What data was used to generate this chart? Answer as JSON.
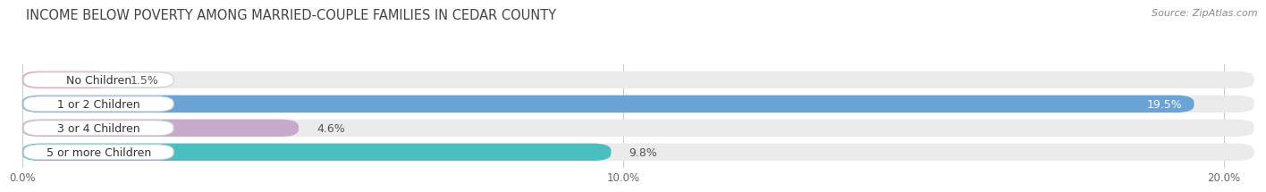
{
  "title": "INCOME BELOW POVERTY AMONG MARRIED-COUPLE FAMILIES IN CEDAR COUNTY",
  "source": "Source: ZipAtlas.com",
  "categories": [
    "No Children",
    "1 or 2 Children",
    "3 or 4 Children",
    "5 or more Children"
  ],
  "values": [
    1.5,
    19.5,
    4.6,
    9.8
  ],
  "value_labels": [
    "1.5%",
    "19.5%",
    "4.6%",
    "9.8%"
  ],
  "bar_colors": [
    "#f0a0aa",
    "#6aa3d5",
    "#c8a8cc",
    "#4bbfbf"
  ],
  "bar_bg_color": "#ebebeb",
  "xlim": [
    0,
    20.5
  ],
  "xticks": [
    0.0,
    10.0,
    20.0
  ],
  "xtick_labels": [
    "0.0%",
    "10.0%",
    "20.0%"
  ],
  "background_color": "#ffffff",
  "title_fontsize": 10.5,
  "bar_height": 0.72,
  "label_fontsize": 9.0,
  "value_fontsize": 9.0
}
